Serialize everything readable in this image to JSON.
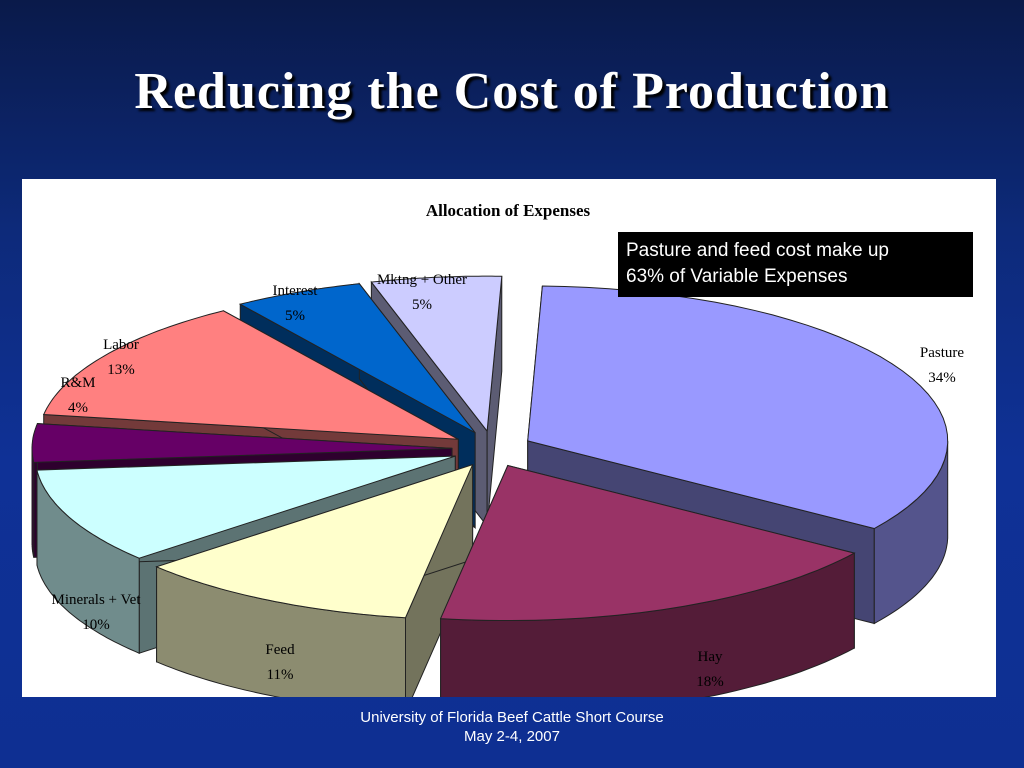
{
  "slide": {
    "title": "Reducing the Cost of Production",
    "footer_line1": "University of Florida Beef Cattle Short Course",
    "footer_line2": "May 2-4, 2007"
  },
  "callout": {
    "line1": "Pasture and feed cost make up",
    "line2": "63% of Variable Expenses"
  },
  "chart_data": {
    "type": "pie",
    "style": "3d-exploded",
    "title": "Allocation of Expenses",
    "categories": [
      "Pasture",
      "Hay",
      "Feed",
      "Minerals + Vet",
      "R&M",
      "Labor",
      "Interest",
      "Mktng + Other"
    ],
    "values": [
      34,
      18,
      11,
      10,
      4,
      13,
      5,
      5
    ],
    "value_labels": [
      "34%",
      "18%",
      "11%",
      "10%",
      "4%",
      "13%",
      "5%",
      "5%"
    ],
    "colors": [
      "#9999ff",
      "#993366",
      "#ffffcc",
      "#ccffff",
      "#660066",
      "#ff8080",
      "#0066cc",
      "#ccccff"
    ]
  }
}
